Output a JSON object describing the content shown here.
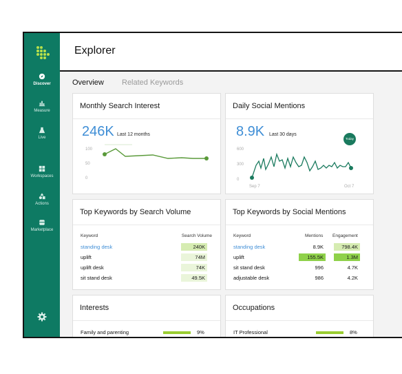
{
  "sidebar": {
    "items": [
      {
        "label": "Discover",
        "icon": "compass-icon"
      },
      {
        "label": "Measure",
        "icon": "bar-chart-icon"
      },
      {
        "label": "Live",
        "icon": "flask-icon"
      },
      {
        "label": "Workspaces",
        "icon": "grid-icon"
      },
      {
        "label": "Actions",
        "icon": "shapes-icon"
      },
      {
        "label": "Marketplace",
        "icon": "store-icon"
      }
    ],
    "settings_icon": "gear-icon"
  },
  "header": {
    "title": "Explorer"
  },
  "tabs": [
    {
      "label": "Overview",
      "active": true
    },
    {
      "label": "Related Keywords",
      "active": false
    }
  ],
  "cards": {
    "search_interest": {
      "title": "Monthly Search Interest",
      "value": "246K",
      "sub": "Last 12 months",
      "axis": [
        "100",
        "50",
        "0"
      ]
    },
    "social_mentions": {
      "title": "Daily Social Mentions",
      "value": "8.9K",
      "sub": "Last 30 days",
      "badge": "Today",
      "axis": [
        "600",
        "300",
        "0"
      ],
      "x_labels": [
        "Sep 7",
        "Oct 7"
      ]
    },
    "top_search": {
      "title": "Top Keywords by Search Volume",
      "headers": [
        "Keyword",
        "Search Volume"
      ],
      "rows": [
        {
          "keyword": "standing desk",
          "volume": "240K"
        },
        {
          "keyword": "uplift",
          "volume": "74M"
        },
        {
          "keyword": "uplift desk",
          "volume": "74K"
        },
        {
          "keyword": "sit stand desk",
          "volume": "49.5K"
        }
      ]
    },
    "top_social": {
      "title": "Top Keywords by Social Mentions",
      "headers": [
        "Keyword",
        "Mentions",
        "Engagement"
      ],
      "rows": [
        {
          "keyword": "standing desk",
          "mentions": "8.9K",
          "engagement": "798.4K"
        },
        {
          "keyword": "uplift",
          "mentions": "155.5K",
          "engagement": "1.3M"
        },
        {
          "keyword": "sit stand desk",
          "mentions": "996",
          "engagement": "4.7K"
        },
        {
          "keyword": "adjustable desk",
          "mentions": "986",
          "engagement": "4.2K"
        }
      ]
    },
    "interests": {
      "title": "Interests",
      "rows": [
        {
          "label": "Family and parenting",
          "pct": "9%"
        }
      ]
    },
    "occupations": {
      "title": "Occupations",
      "rows": [
        {
          "label": "IT Professional",
          "pct": "8%"
        }
      ]
    }
  },
  "colors": {
    "sidebar": "#0e7a63",
    "accent_blue": "#3f8ed6",
    "line_green": "#5a9a3a",
    "dark_green": "#1a7a5e",
    "highlight": "#9acd32"
  }
}
